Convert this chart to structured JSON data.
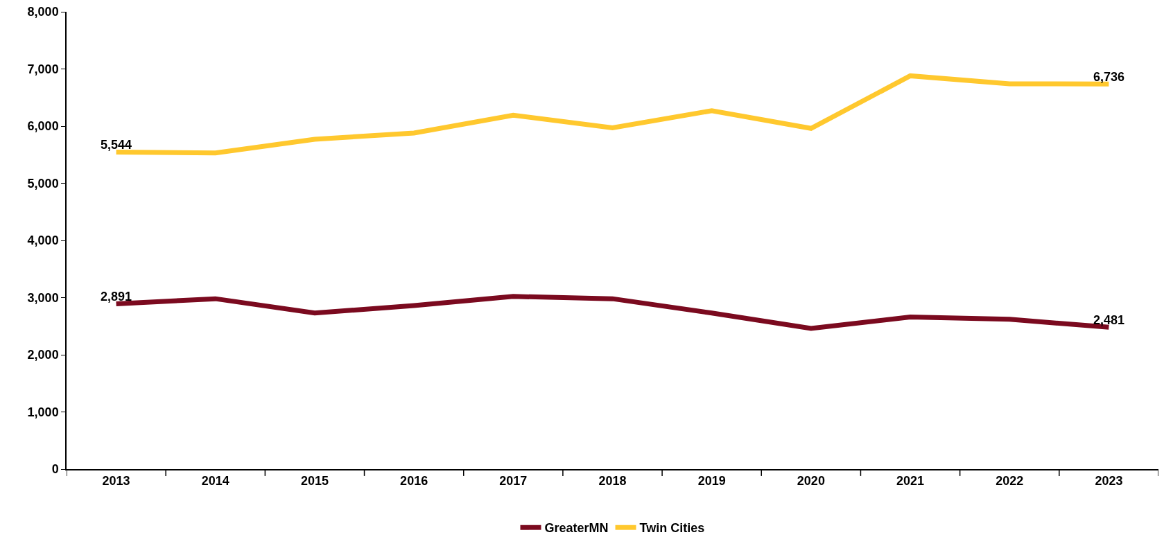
{
  "chart_data": {
    "type": "line",
    "categories": [
      "2013",
      "2014",
      "2015",
      "2016",
      "2017",
      "2018",
      "2019",
      "2020",
      "2021",
      "2022",
      "2023"
    ],
    "series": [
      {
        "name": "GreaterMN",
        "color": "#7b0a1f",
        "values": [
          2891,
          2980,
          2730,
          2860,
          3020,
          2980,
          2730,
          2460,
          2660,
          2620,
          2481
        ],
        "value_labels": [
          "2,891",
          null,
          null,
          null,
          null,
          null,
          null,
          null,
          null,
          null,
          "2,481"
        ]
      },
      {
        "name": "Twin Cities",
        "color": "#ffc82e",
        "values": [
          5544,
          5530,
          5770,
          5880,
          6190,
          5970,
          6270,
          5960,
          6880,
          6740,
          6736
        ],
        "value_labels": [
          "5,544",
          null,
          null,
          null,
          null,
          null,
          null,
          null,
          null,
          null,
          "6,736"
        ]
      }
    ],
    "ylim": [
      0,
      8000
    ],
    "yticks": [
      0,
      {
        "value": 1000,
        "label": "1,000"
      },
      {
        "value": 2000,
        "label": "2,000"
      },
      {
        "value": 3000,
        "label": "3,000"
      },
      {
        "value": 4000,
        "label": "4,000"
      },
      {
        "value": 5000,
        "label": "5,000"
      },
      {
        "value": 6000,
        "label": "6,000"
      },
      {
        "value": 7000,
        "label": "7,000"
      },
      {
        "value": 8000,
        "label": "8,000"
      }
    ],
    "grid": false,
    "legend": "bottom",
    "marker": "none",
    "line_style": "solid"
  }
}
